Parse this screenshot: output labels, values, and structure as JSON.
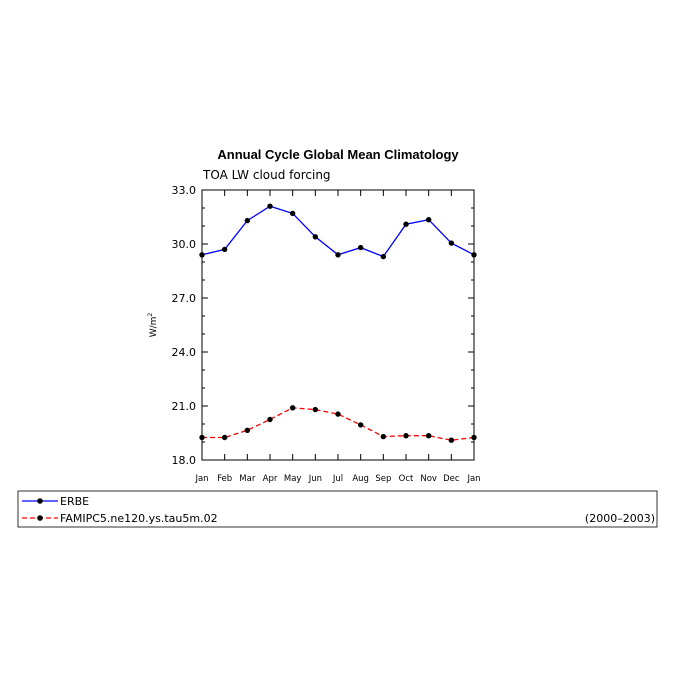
{
  "chart_data": {
    "type": "line",
    "title": "Annual Cycle Global Mean Climatology",
    "subtitle": "TOA LW cloud forcing",
    "ylabel": "W/m",
    "ylabel_sup": "2",
    "ylim": [
      18.0,
      33.0
    ],
    "yticks": [
      "18.0",
      "21.0",
      "24.0",
      "27.0",
      "30.0",
      "33.0"
    ],
    "categories": [
      "Jan",
      "Feb",
      "Mar",
      "Apr",
      "May",
      "Jun",
      "Jul",
      "Aug",
      "Sep",
      "Oct",
      "Nov",
      "Dec",
      "Jan"
    ],
    "series": [
      {
        "name": "ERBE",
        "color": "#0000ff",
        "dash": "solid",
        "values": [
          29.4,
          29.7,
          31.3,
          32.1,
          31.7,
          30.4,
          29.4,
          29.8,
          29.3,
          31.1,
          31.35,
          30.05,
          29.4
        ]
      },
      {
        "name": "FAMIPC5.ne120.ys.tau5m.02",
        "color": "#ff0000",
        "dash": "dashed",
        "values": [
          19.25,
          19.25,
          19.65,
          20.25,
          20.9,
          20.8,
          20.55,
          19.95,
          19.3,
          19.35,
          19.35,
          19.1,
          19.25
        ]
      }
    ],
    "legend_note": "(2000–2003)",
    "legend_position": "below"
  }
}
